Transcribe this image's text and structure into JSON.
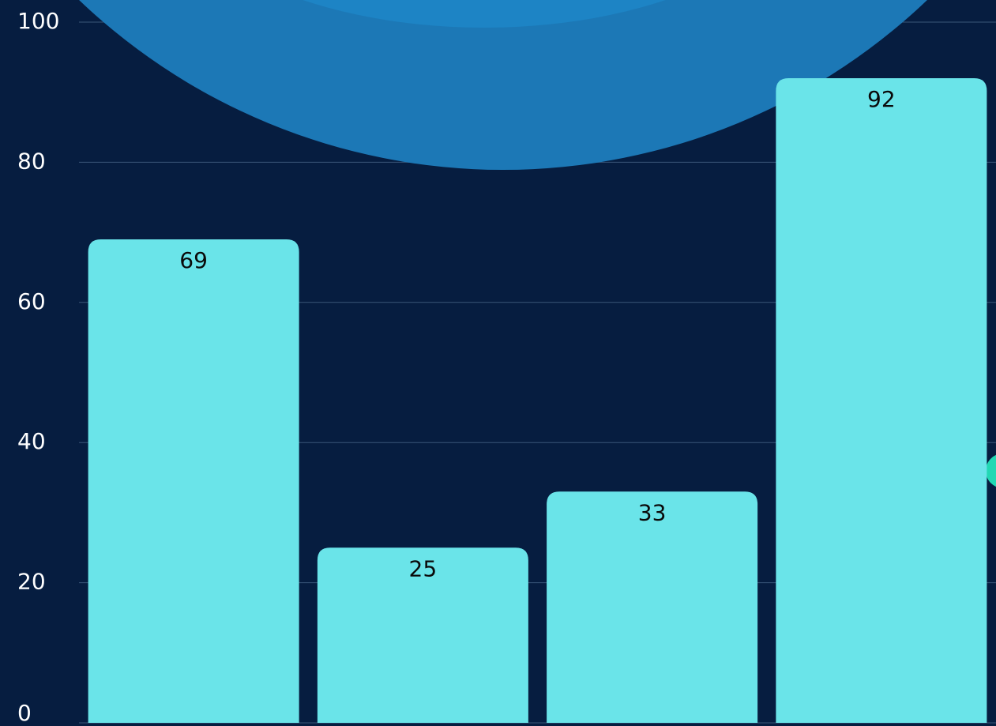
{
  "chart_data": {
    "type": "bar",
    "categories": [
      null,
      null,
      null,
      null
    ],
    "values": [
      69,
      25,
      33,
      92
    ],
    "color": "#6ae4e9",
    "ylim": [
      0,
      100
    ],
    "yticks": [
      0,
      20,
      40,
      60,
      80,
      100
    ],
    "grid": true
  }
}
